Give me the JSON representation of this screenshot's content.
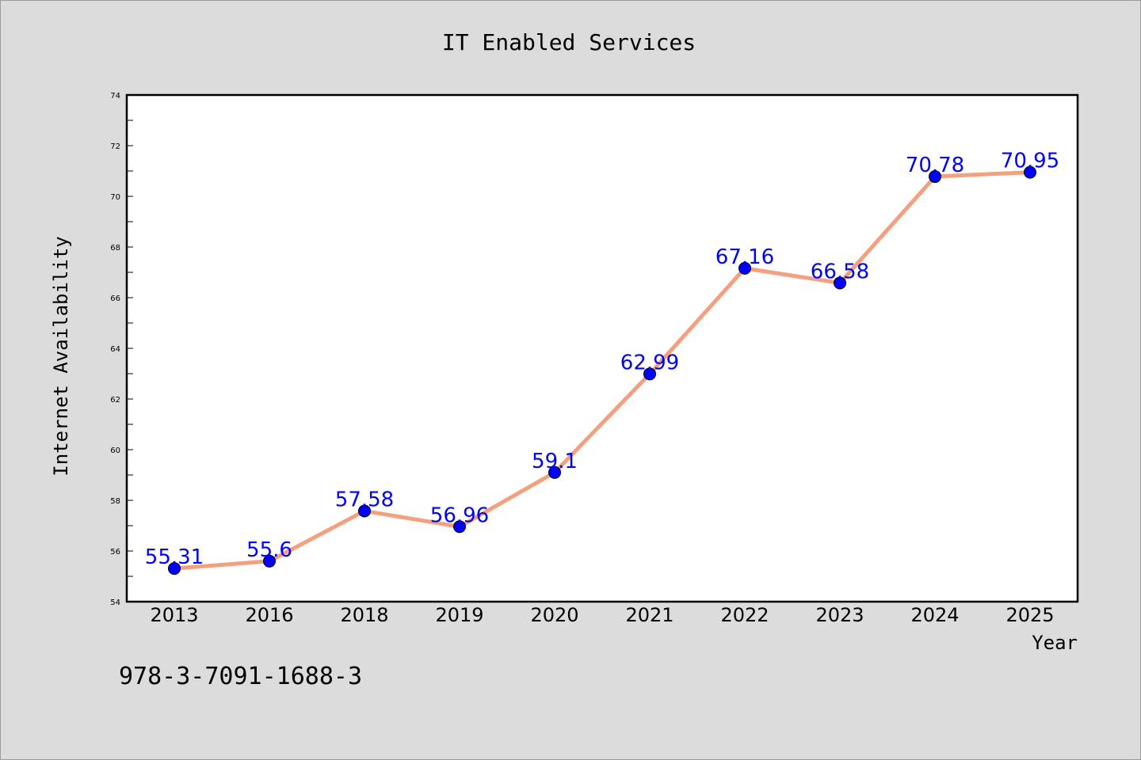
{
  "chart_data": {
    "type": "line",
    "title": "IT Enabled Services",
    "xlabel": "Year",
    "ylabel": "Internet Availability",
    "categories": [
      "2013",
      "2016",
      "2018",
      "2019",
      "2020",
      "2021",
      "2022",
      "2023",
      "2024",
      "2025"
    ],
    "series": [
      {
        "values": [
          55.31,
          55.6,
          57.58,
          56.96,
          59.1,
          62.99,
          67.16,
          66.58,
          70.78,
          70.95
        ],
        "data_labels": [
          "55.31",
          "55.6",
          "57.58",
          "56.96",
          "59.1",
          "62.99",
          "67.16",
          "66.58",
          "70.78",
          "70.95"
        ],
        "line_color": "#f4a07f",
        "marker_color": "#0000ff",
        "label_color": "#0000ff"
      }
    ],
    "ylim": [
      54,
      74
    ],
    "yticks": [
      54,
      56,
      58,
      60,
      62,
      64,
      66,
      68,
      70,
      72,
      74
    ],
    "ytick_labels": [
      "54",
      "56",
      "58",
      "60",
      "62",
      "64",
      "66",
      "68",
      "70",
      "72",
      "74"
    ],
    "grid": false,
    "legend": "none"
  },
  "annotation": {
    "isbn": "978-3-7091-1688-3"
  },
  "colors": {
    "background": "#dcdcdc",
    "plot_background": "#ffffff"
  }
}
